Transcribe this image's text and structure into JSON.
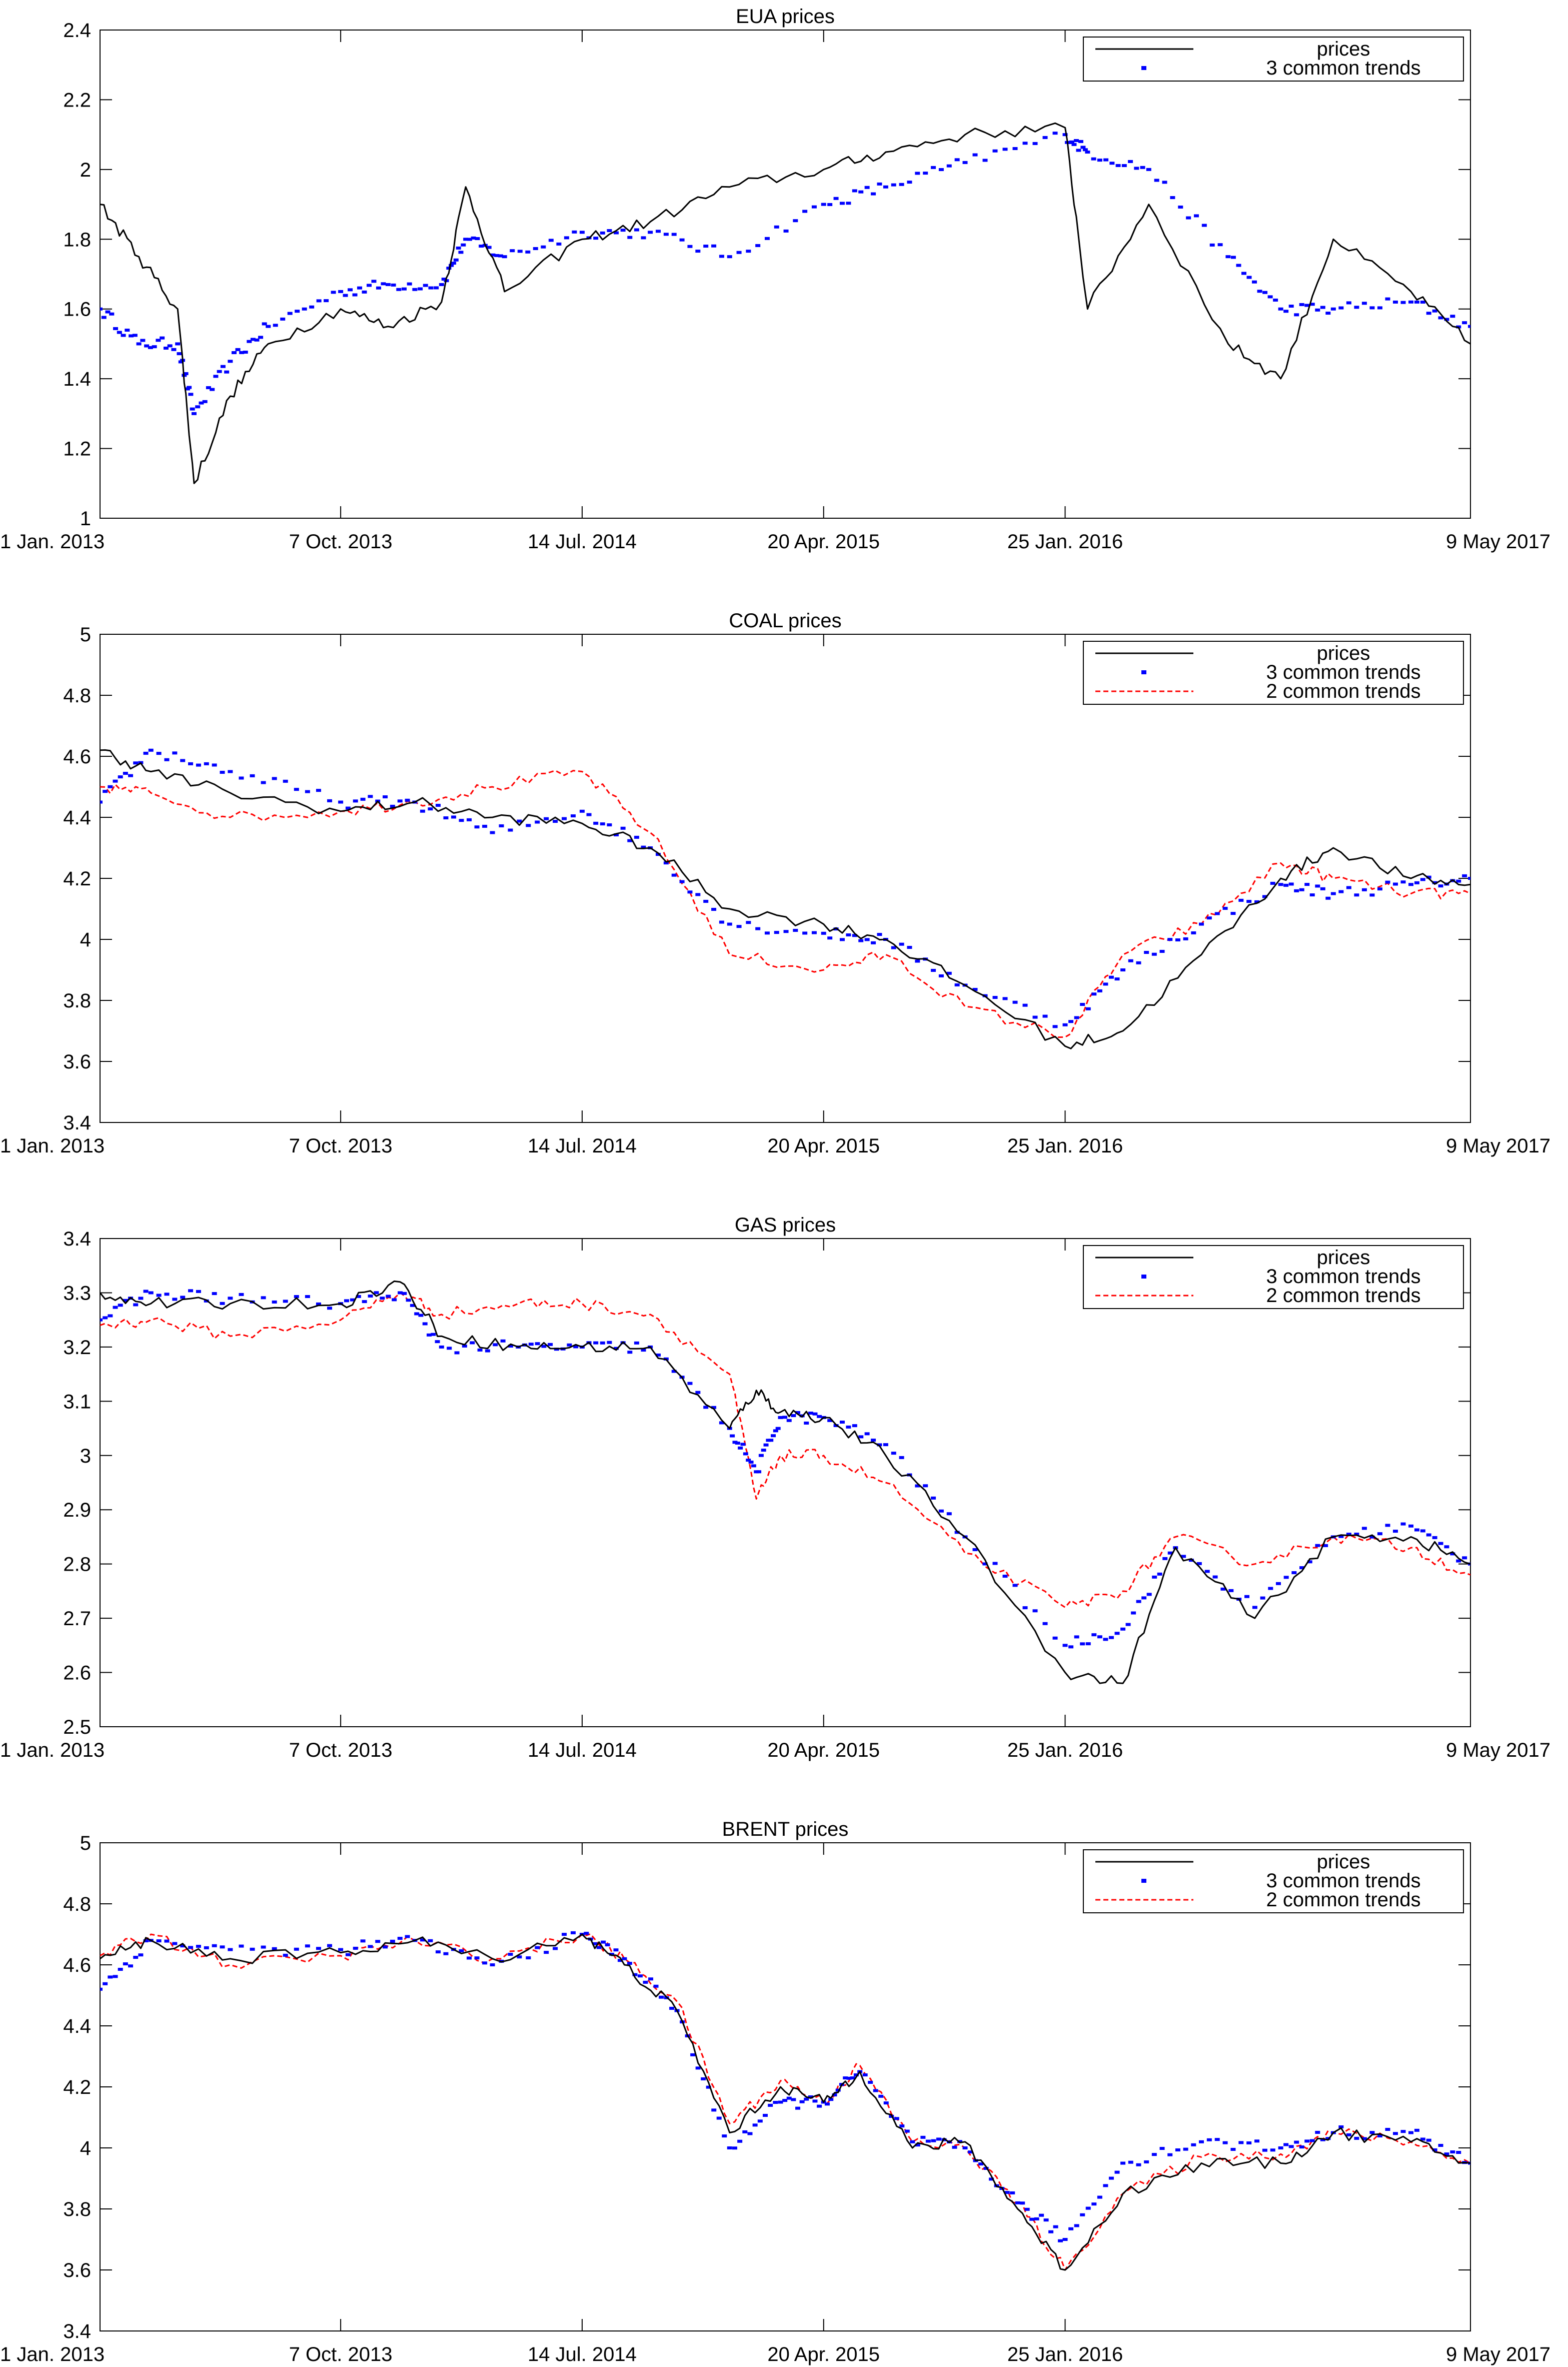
{
  "figure": {
    "x_ticks": [
      "1 Jan. 2013",
      "7 Oct. 2013",
      "14 Jul. 2014",
      "20 Apr. 2015",
      "25 Jan. 2016",
      "9 May 2017"
    ],
    "x_tick_dates": [
      "2013-01-01",
      "2013-10-07",
      "2014-07-14",
      "2015-04-20",
      "2016-01-25",
      "2017-05-09"
    ],
    "colors": {
      "prices": "#000000",
      "trends3": "#0000ff",
      "trends2": "#ff0000",
      "axis": "#000000",
      "background": "#ffffff"
    }
  },
  "chart_data": [
    {
      "type": "line",
      "title": "EUA prices",
      "xlabel": "",
      "ylabel": "",
      "ylim": [
        1,
        2.4
      ],
      "y_ticks": [
        "1",
        "1.2",
        "1.4",
        "1.6",
        "1.8",
        "2",
        "2.2",
        "2.4"
      ],
      "legend_placement": "top-right",
      "grid": false,
      "x": [
        "2013-01-01",
        "2013-02-15",
        "2013-04-01",
        "2013-04-20",
        "2013-06-01",
        "2013-07-15",
        "2013-10-07",
        "2013-12-01",
        "2014-02-01",
        "2014-03-01",
        "2014-04-15",
        "2014-07-14",
        "2014-10-01",
        "2015-01-01",
        "2015-04-20",
        "2015-07-01",
        "2015-10-01",
        "2016-01-25",
        "2016-02-20",
        "2016-05-01",
        "2016-08-01",
        "2016-10-01",
        "2016-12-01",
        "2017-03-01",
        "2017-05-09"
      ],
      "series": [
        {
          "name": "prices",
          "style": "line",
          "values": [
            1.9,
            1.75,
            1.6,
            1.1,
            1.35,
            1.5,
            1.6,
            1.55,
            1.62,
            1.95,
            1.65,
            1.8,
            1.85,
            1.95,
            2.0,
            2.05,
            2.1,
            2.12,
            1.6,
            1.9,
            1.5,
            1.4,
            1.8,
            1.65,
            1.5
          ]
        },
        {
          "name": "3 common trends",
          "style": "dots",
          "values": [
            1.6,
            1.5,
            1.5,
            1.3,
            1.45,
            1.55,
            1.65,
            1.67,
            1.67,
            1.8,
            1.75,
            1.82,
            1.82,
            1.75,
            1.9,
            1.95,
            2.02,
            2.1,
            2.05,
            2.0,
            1.75,
            1.6,
            1.6,
            1.62,
            1.55
          ]
        }
      ]
    },
    {
      "type": "line",
      "title": "COAL prices",
      "xlabel": "",
      "ylabel": "",
      "ylim": [
        3.4,
        5
      ],
      "y_ticks": [
        "3.4",
        "3.6",
        "3.8",
        "4",
        "4.2",
        "4.4",
        "4.6",
        "4.8",
        "5"
      ],
      "legend_placement": "top-right",
      "grid": false,
      "x": [
        "2013-01-01",
        "2013-03-01",
        "2013-06-01",
        "2013-10-07",
        "2014-01-01",
        "2014-04-01",
        "2014-07-14",
        "2014-10-01",
        "2015-01-01",
        "2015-04-20",
        "2015-07-01",
        "2015-10-01",
        "2016-01-25",
        "2016-04-01",
        "2016-07-01",
        "2016-10-01",
        "2016-12-01",
        "2017-03-01",
        "2017-05-09"
      ],
      "series": [
        {
          "name": "prices",
          "style": "line",
          "values": [
            4.62,
            4.55,
            4.48,
            4.42,
            4.45,
            4.4,
            4.38,
            4.3,
            4.1,
            4.05,
            4.0,
            3.85,
            3.65,
            3.7,
            3.95,
            4.2,
            4.3,
            4.2,
            4.18
          ]
        },
        {
          "name": "3 common trends",
          "style": "dots",
          "values": [
            4.45,
            4.62,
            4.55,
            4.45,
            4.45,
            4.35,
            4.42,
            4.3,
            4.05,
            4.02,
            4.0,
            3.85,
            3.72,
            3.9,
            4.05,
            4.18,
            4.15,
            4.18,
            4.2
          ]
        },
        {
          "name": "2 common trends",
          "style": "dashed",
          "values": [
            4.5,
            4.48,
            4.4,
            4.42,
            4.45,
            4.5,
            4.55,
            4.35,
            3.95,
            3.9,
            3.95,
            3.78,
            3.68,
            3.95,
            4.05,
            4.25,
            4.2,
            4.15,
            4.15
          ]
        }
      ]
    },
    {
      "type": "line",
      "title": "GAS prices",
      "xlabel": "",
      "ylabel": "",
      "ylim": [
        2.5,
        3.4
      ],
      "y_ticks": [
        "2.5",
        "2.6",
        "2.7",
        "2.8",
        "2.9",
        "3",
        "3.1",
        "3.2",
        "3.3",
        "3.4"
      ],
      "legend_placement": "top-right",
      "grid": false,
      "x": [
        "2013-01-01",
        "2013-03-01",
        "2013-06-01",
        "2013-10-07",
        "2013-12-15",
        "2014-02-01",
        "2014-05-01",
        "2014-07-14",
        "2014-10-01",
        "2015-01-01",
        "2015-02-01",
        "2015-03-01",
        "2015-04-20",
        "2015-07-01",
        "2015-10-01",
        "2016-01-25",
        "2016-04-01",
        "2016-06-01",
        "2016-09-01",
        "2016-12-01",
        "2017-03-01",
        "2017-05-09"
      ],
      "series": [
        {
          "name": "prices",
          "style": "line",
          "values": [
            3.3,
            3.28,
            3.28,
            3.28,
            3.32,
            3.22,
            3.2,
            3.2,
            3.2,
            3.05,
            3.12,
            3.08,
            3.07,
            3.0,
            2.85,
            2.6,
            2.58,
            2.83,
            2.7,
            2.85,
            2.85,
            2.8
          ]
        },
        {
          "name": "3 common trends",
          "style": "dots",
          "values": [
            3.25,
            3.3,
            3.29,
            3.28,
            3.3,
            3.2,
            3.2,
            3.2,
            3.2,
            3.05,
            2.97,
            3.07,
            3.07,
            3.02,
            2.85,
            2.65,
            2.68,
            2.83,
            2.72,
            2.85,
            2.87,
            2.8
          ]
        },
        {
          "name": "2 common trends",
          "style": "dashed",
          "values": [
            3.24,
            3.25,
            3.22,
            3.25,
            3.3,
            3.26,
            3.28,
            3.28,
            3.26,
            3.15,
            2.92,
            3.0,
            3.0,
            2.95,
            2.82,
            2.72,
            2.75,
            2.85,
            2.8,
            2.85,
            2.83,
            2.78
          ]
        }
      ]
    },
    {
      "type": "line",
      "title": "BRENT prices",
      "xlabel": "",
      "ylabel": "",
      "ylim": [
        3.4,
        5
      ],
      "y_ticks": [
        "3.4",
        "3.6",
        "3.8",
        "4",
        "4.2",
        "4.4",
        "4.6",
        "4.8",
        "5"
      ],
      "legend_placement": "top-right",
      "grid": false,
      "x": [
        "2013-01-01",
        "2013-03-01",
        "2013-06-01",
        "2013-10-07",
        "2014-01-01",
        "2014-04-01",
        "2014-07-14",
        "2014-09-01",
        "2014-11-01",
        "2015-01-01",
        "2015-03-01",
        "2015-04-20",
        "2015-06-01",
        "2015-08-01",
        "2015-10-01",
        "2015-12-01",
        "2016-01-25",
        "2016-04-01",
        "2016-07-01",
        "2016-10-01",
        "2016-12-01",
        "2017-03-01",
        "2017-05-09"
      ],
      "series": [
        {
          "name": "prices",
          "style": "line",
          "values": [
            4.62,
            4.68,
            4.62,
            4.64,
            4.68,
            4.62,
            4.7,
            4.6,
            4.45,
            4.05,
            4.2,
            4.15,
            4.25,
            4.0,
            4.02,
            3.8,
            3.6,
            3.85,
            3.95,
            3.95,
            4.05,
            4.02,
            3.95
          ]
        },
        {
          "name": "3 common trends",
          "style": "dots",
          "values": [
            4.52,
            4.68,
            4.65,
            4.65,
            4.68,
            4.6,
            4.7,
            4.62,
            4.45,
            4.0,
            4.15,
            4.15,
            4.25,
            4.02,
            4.0,
            3.82,
            3.7,
            3.95,
            4.02,
            4.0,
            4.05,
            4.05,
            3.95
          ]
        },
        {
          "name": "2 common trends",
          "style": "dashed",
          "values": [
            4.63,
            4.7,
            4.6,
            4.63,
            4.68,
            4.62,
            4.7,
            4.62,
            4.48,
            4.08,
            4.22,
            4.15,
            4.27,
            4.02,
            4.0,
            3.82,
            3.6,
            3.85,
            3.97,
            3.98,
            4.05,
            4.02,
            3.95
          ]
        }
      ]
    }
  ]
}
